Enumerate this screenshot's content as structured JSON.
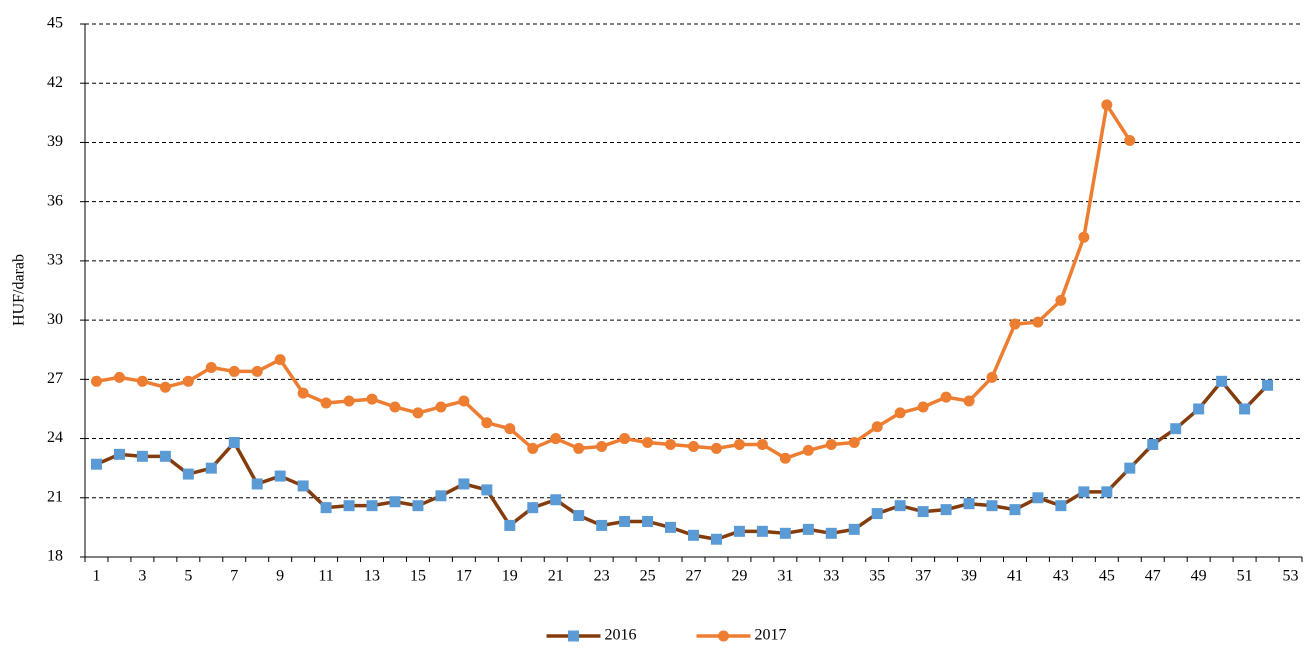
{
  "chart_data": {
    "type": "line",
    "y_label": "HUF/darab",
    "categories": [
      "1",
      null,
      "3",
      null,
      "5",
      null,
      "7",
      null,
      "9",
      null,
      "11",
      null,
      "13",
      null,
      "15",
      null,
      "17",
      null,
      "19",
      null,
      "21",
      null,
      "23",
      null,
      "25",
      null,
      "27",
      null,
      "29",
      null,
      "31",
      null,
      "33",
      null,
      "35",
      null,
      "37",
      null,
      "39",
      null,
      "41",
      null,
      "43",
      null,
      "45",
      null,
      "47",
      null,
      "49",
      null,
      "51",
      null,
      "53"
    ],
    "series": [
      {
        "name": "2016",
        "color": "#843c0c",
        "marker": "square",
        "marker_color": "#5b9bd5",
        "values": [
          22.7,
          23.2,
          23.1,
          23.1,
          22.2,
          22.5,
          23.8,
          21.7,
          22.1,
          21.6,
          20.5,
          20.6,
          20.6,
          20.8,
          20.6,
          21.1,
          21.7,
          21.4,
          19.6,
          20.5,
          20.9,
          20.1,
          19.6,
          19.8,
          19.8,
          19.5,
          19.1,
          18.9,
          19.3,
          19.3,
          19.2,
          19.4,
          19.2,
          19.4,
          20.2,
          20.6,
          20.3,
          20.4,
          20.7,
          20.6,
          20.4,
          21.0,
          20.6,
          21.3,
          21.3,
          22.5,
          23.7,
          24.5,
          25.5,
          26.9,
          25.5,
          26.7,
          null
        ]
      },
      {
        "name": "2017",
        "color": "#ed7d31",
        "marker": "circle",
        "marker_color": "#ed7d31",
        "values": [
          26.9,
          27.1,
          26.9,
          26.6,
          26.9,
          27.6,
          27.4,
          27.4,
          28.0,
          26.3,
          25.8,
          25.9,
          26.0,
          25.6,
          25.3,
          25.6,
          25.9,
          24.8,
          24.5,
          23.5,
          24.0,
          23.5,
          23.6,
          24.0,
          23.8,
          23.7,
          23.6,
          23.5,
          23.7,
          23.7,
          23.0,
          23.4,
          23.7,
          23.8,
          24.6,
          25.3,
          25.6,
          26.1,
          25.9,
          27.1,
          29.8,
          29.9,
          31.0,
          34.2,
          40.9,
          39.1,
          null,
          null,
          null,
          null,
          null,
          null,
          null
        ]
      }
    ],
    "ylim": [
      18,
      45
    ],
    "yticks": [
      18,
      21,
      24,
      27,
      30,
      33,
      36,
      39,
      42,
      45
    ],
    "grid": true,
    "legend": "bottom"
  }
}
